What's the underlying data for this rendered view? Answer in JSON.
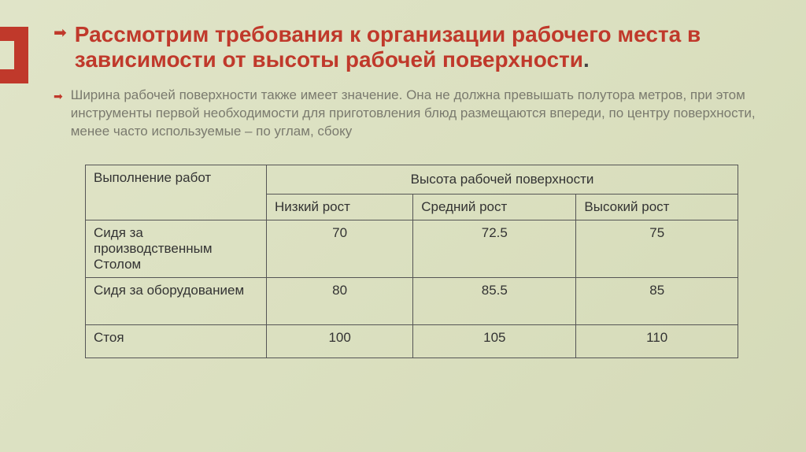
{
  "title_accent": "Рассмотрим требования к организации рабочего места в зависимости от высоты рабочей поверхности",
  "title_dot": ".",
  "subtitle": "Ширина рабочей поверхности также имеет значение. Она не должна превышать полутора метров, при этом инструменты первой необходимости для приготовления блюд размещаются впереди, по центру поверхности, менее часто используемые – по углам, сбоку",
  "table": {
    "header_left": "Выполнение работ",
    "header_right": "Высота рабочей поверхности",
    "subheaders": [
      "Низкий рост",
      "Средний рост",
      "Высокий рост"
    ],
    "rows": [
      {
        "label": " Сидя за производственным Столом",
        "values": [
          "70",
          "72.5",
          "75"
        ]
      },
      {
        "label": "Сидя за оборудованием",
        "values": [
          "80",
          "85.5",
          "85"
        ]
      },
      {
        "label": "Стоя",
        "values": [
          "100",
          "105",
          "110"
        ]
      }
    ]
  },
  "colors": {
    "accent": "#c0392b",
    "title_text": "#444444",
    "subtitle_text": "#7a7a6e",
    "table_border": "#555555",
    "background_from": "#e0e4c8",
    "background_to": "#d5dab8"
  },
  "typography": {
    "title_fontsize": 28,
    "title_fontweight": 700,
    "subtitle_fontsize": 17,
    "table_fontsize": 17
  }
}
